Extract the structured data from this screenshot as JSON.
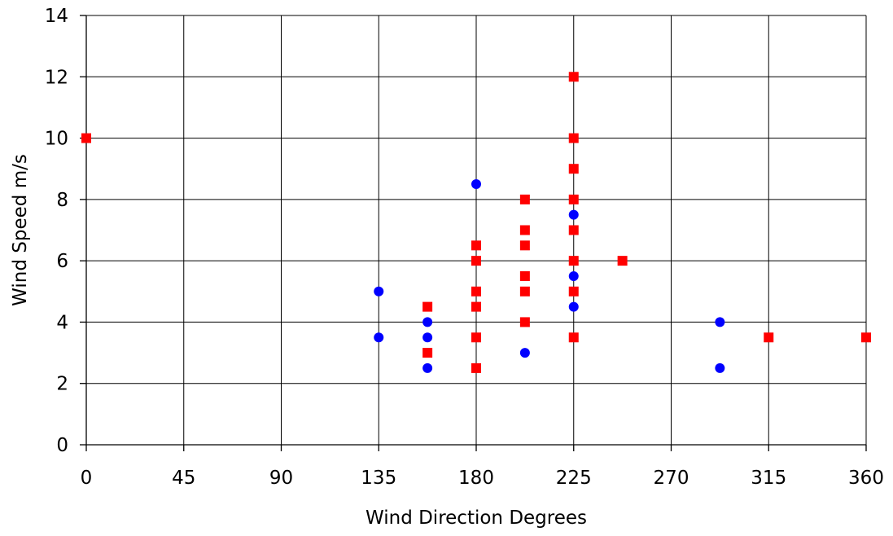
{
  "chart_data": {
    "type": "scatter",
    "title": "",
    "xlabel": "Wind Direction Degrees",
    "ylabel": "Wind Speed m/s",
    "xlim": [
      0,
      360
    ],
    "ylim": [
      0,
      14
    ],
    "x_ticks": [
      0,
      45,
      90,
      135,
      180,
      225,
      270,
      315,
      360
    ],
    "y_ticks": [
      0,
      2,
      4,
      6,
      8,
      10,
      12,
      14
    ],
    "grid": true,
    "legend": "none",
    "series": [
      {
        "marker": "circle",
        "color": "#0000ff",
        "points": [
          [
            135,
            5
          ],
          [
            135,
            3.5
          ],
          [
            157.5,
            4
          ],
          [
            157.5,
            3.5
          ],
          [
            157.5,
            2.5
          ],
          [
            180,
            8.5
          ],
          [
            202.5,
            3
          ],
          [
            225,
            7.5
          ],
          [
            225,
            5.5
          ],
          [
            225,
            4.5
          ],
          [
            292.5,
            4
          ],
          [
            292.5,
            2.5
          ]
        ]
      },
      {
        "marker": "square",
        "color": "#ff0000",
        "points": [
          [
            0,
            10
          ],
          [
            157.5,
            4.5
          ],
          [
            157.5,
            3
          ],
          [
            180,
            6.5
          ],
          [
            180,
            6
          ],
          [
            180,
            5
          ],
          [
            180,
            4.5
          ],
          [
            180,
            3.5
          ],
          [
            180,
            2.5
          ],
          [
            202.5,
            8
          ],
          [
            202.5,
            7
          ],
          [
            202.5,
            6.5
          ],
          [
            202.5,
            5.5
          ],
          [
            202.5,
            5
          ],
          [
            202.5,
            4
          ],
          [
            225,
            12
          ],
          [
            225,
            10
          ],
          [
            225,
            9
          ],
          [
            225,
            8
          ],
          [
            225,
            7
          ],
          [
            225,
            6
          ],
          [
            225,
            5
          ],
          [
            225,
            3.5
          ],
          [
            247.5,
            6
          ],
          [
            315,
            3.5
          ],
          [
            360,
            3.5
          ]
        ]
      }
    ]
  }
}
